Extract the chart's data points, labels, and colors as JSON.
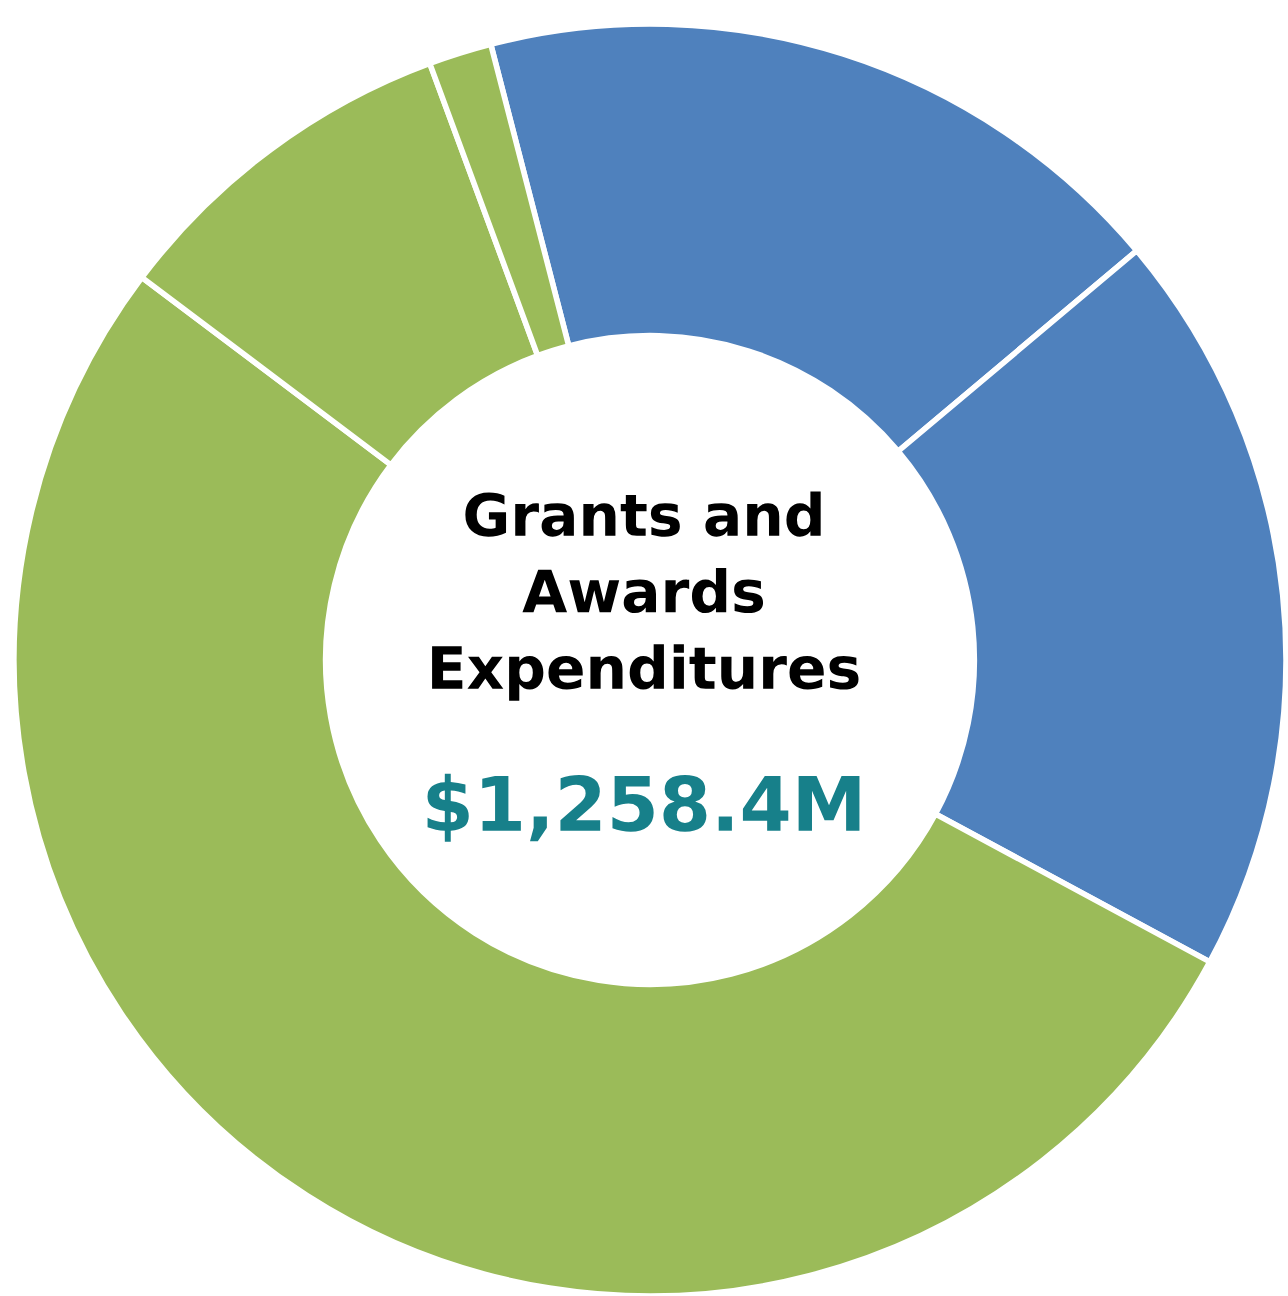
{
  "chart_data": {
    "type": "donut",
    "title": "Grants and Awards Expenditures",
    "categories": [
      null,
      null,
      null,
      null,
      null
    ],
    "values": [
      17.9,
      19.0,
      52.4,
      9.1,
      1.6
    ],
    "colors": [
      "#4f81bd",
      "#4f81bd",
      "#9bbb59",
      "#9bbb59",
      "#9bbb59"
    ],
    "annotations": [
      "$1,258.4M"
    ]
  }
}
